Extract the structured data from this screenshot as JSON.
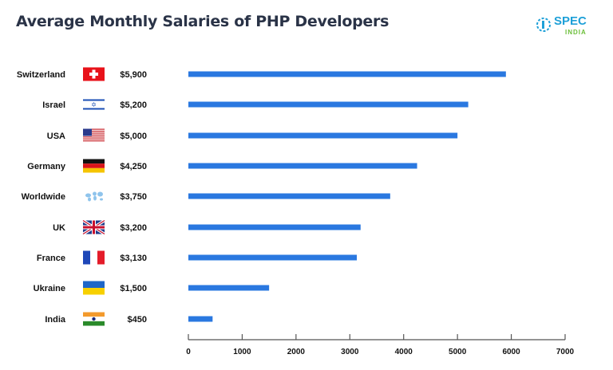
{
  "title": "Average Monthly Salaries of PHP Developers",
  "logo": {
    "text": "SPEC",
    "subtext": "INDIA",
    "colors": {
      "spec": "#1ea0d8",
      "india": "#6cbf3a"
    }
  },
  "chart_data": {
    "type": "bar",
    "orientation": "horizontal",
    "title": "Average Monthly Salaries of PHP Developers",
    "categories": [
      "Switzerland",
      "Israel",
      "USA",
      "Germany",
      "Worldwide",
      "UK",
      "France",
      "Ukraine",
      "India"
    ],
    "value_labels": [
      "$5,900",
      "$5,200",
      "$5,000",
      "$4,250",
      "$3,750",
      "$3,200",
      "$3,130",
      "$1,500",
      "$450"
    ],
    "values": [
      5900,
      5200,
      5000,
      4250,
      3750,
      3200,
      3130,
      1500,
      450
    ],
    "flags": [
      "switzerland-flag",
      "israel-flag",
      "usa-flag",
      "germany-flag",
      "world-map",
      "uk-flag",
      "france-flag",
      "ukraine-flag",
      "india-flag"
    ],
    "xlim": [
      0,
      7000
    ],
    "xticks": [
      0,
      1000,
      2000,
      3000,
      4000,
      5000,
      6000,
      7000
    ],
    "xlabel": "",
    "ylabel": "",
    "grid": false,
    "bar_color": "#2a78e0"
  }
}
